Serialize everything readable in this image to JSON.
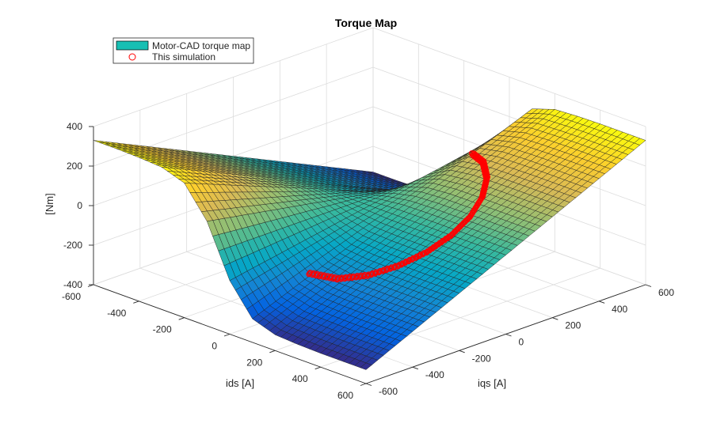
{
  "chart_data": {
    "type": "surface",
    "title": "Torque Map",
    "xlabel": "ids [A]",
    "ylabel": "iqs [A]",
    "zlabel": "[Nm]",
    "xlim": [
      -600,
      600
    ],
    "ylim": [
      -600,
      600
    ],
    "zlim": [
      -400,
      400
    ],
    "xticks": [
      "-600",
      "-400",
      "-200",
      "0",
      "200",
      "400",
      "600"
    ],
    "yticks": [
      "-600",
      "-400",
      "-200",
      "0",
      "200",
      "400",
      "600"
    ],
    "zticks": [
      "-400",
      "-200",
      "0",
      "200",
      "400"
    ],
    "grid": true,
    "legend": {
      "placement": "top-left",
      "entries": [
        {
          "label": "Motor-CAD torque map",
          "color": "#17bfb3"
        },
        {
          "label": "This simulation",
          "color": "#ff0000"
        }
      ]
    },
    "surface": {
      "ids": [
        -600,
        -500,
        -400,
        -300,
        -200,
        -100,
        0,
        100,
        200,
        300,
        400,
        500,
        600
      ],
      "iqs": [
        -600,
        -500,
        -400,
        -300,
        -200,
        -100,
        0,
        100,
        200,
        300,
        400,
        500,
        600
      ],
      "torque_by_ids_row": [
        [
          330,
          275,
          220,
          165,
          110,
          55,
          0,
          -55,
          -110,
          -165,
          -220,
          -275,
          -330
        ],
        [
          330,
          275,
          220,
          165,
          110,
          55,
          0,
          -55,
          -110,
          -165,
          -220,
          -275,
          -330
        ],
        [
          327,
          272,
          218,
          163,
          109,
          54,
          0,
          -54,
          -109,
          -163,
          -218,
          -272,
          -327
        ],
        [
          320,
          267,
          213,
          160,
          107,
          53,
          0,
          -53,
          -107,
          -160,
          -213,
          -267,
          -320
        ],
        [
          281,
          234,
          187,
          140,
          94,
          47,
          0,
          -47,
          -94,
          -140,
          -187,
          -234,
          -281
        ],
        [
          129,
          107,
          86,
          64,
          43,
          21,
          0,
          -21,
          -43,
          -64,
          -86,
          -107,
          -129
        ],
        [
          -129,
          -107,
          -86,
          -64,
          -43,
          -21,
          0,
          21,
          43,
          64,
          86,
          107,
          129
        ],
        [
          -281,
          -234,
          -187,
          -140,
          -94,
          -47,
          0,
          47,
          94,
          140,
          187,
          234,
          281
        ],
        [
          -320,
          -267,
          -213,
          -160,
          -107,
          -53,
          0,
          53,
          107,
          160,
          213,
          267,
          320
        ],
        [
          -327,
          -272,
          -218,
          -163,
          -109,
          -54,
          0,
          54,
          109,
          163,
          218,
          272,
          327
        ],
        [
          -330,
          -275,
          -220,
          -165,
          -110,
          -55,
          0,
          55,
          110,
          165,
          220,
          275,
          330
        ],
        [
          -330,
          -275,
          -220,
          -165,
          -110,
          -55,
          0,
          55,
          110,
          165,
          220,
          275,
          330
        ],
        [
          -330,
          -275,
          -220,
          -165,
          -110,
          -55,
          0,
          55,
          110,
          165,
          220,
          275,
          330
        ]
      ]
    },
    "simulation": {
      "ids": [
        93,
        180,
        255,
        312,
        348,
        360,
        348,
        312,
        255,
        180,
        93
      ],
      "iqs": [
        -348,
        -312,
        -255,
        -180,
        -93,
        0,
        93,
        180,
        255,
        312,
        348
      ],
      "torque": [
        -159,
        -165,
        -140,
        -99,
        -51,
        0,
        51,
        99,
        140,
        165,
        159
      ]
    }
  }
}
